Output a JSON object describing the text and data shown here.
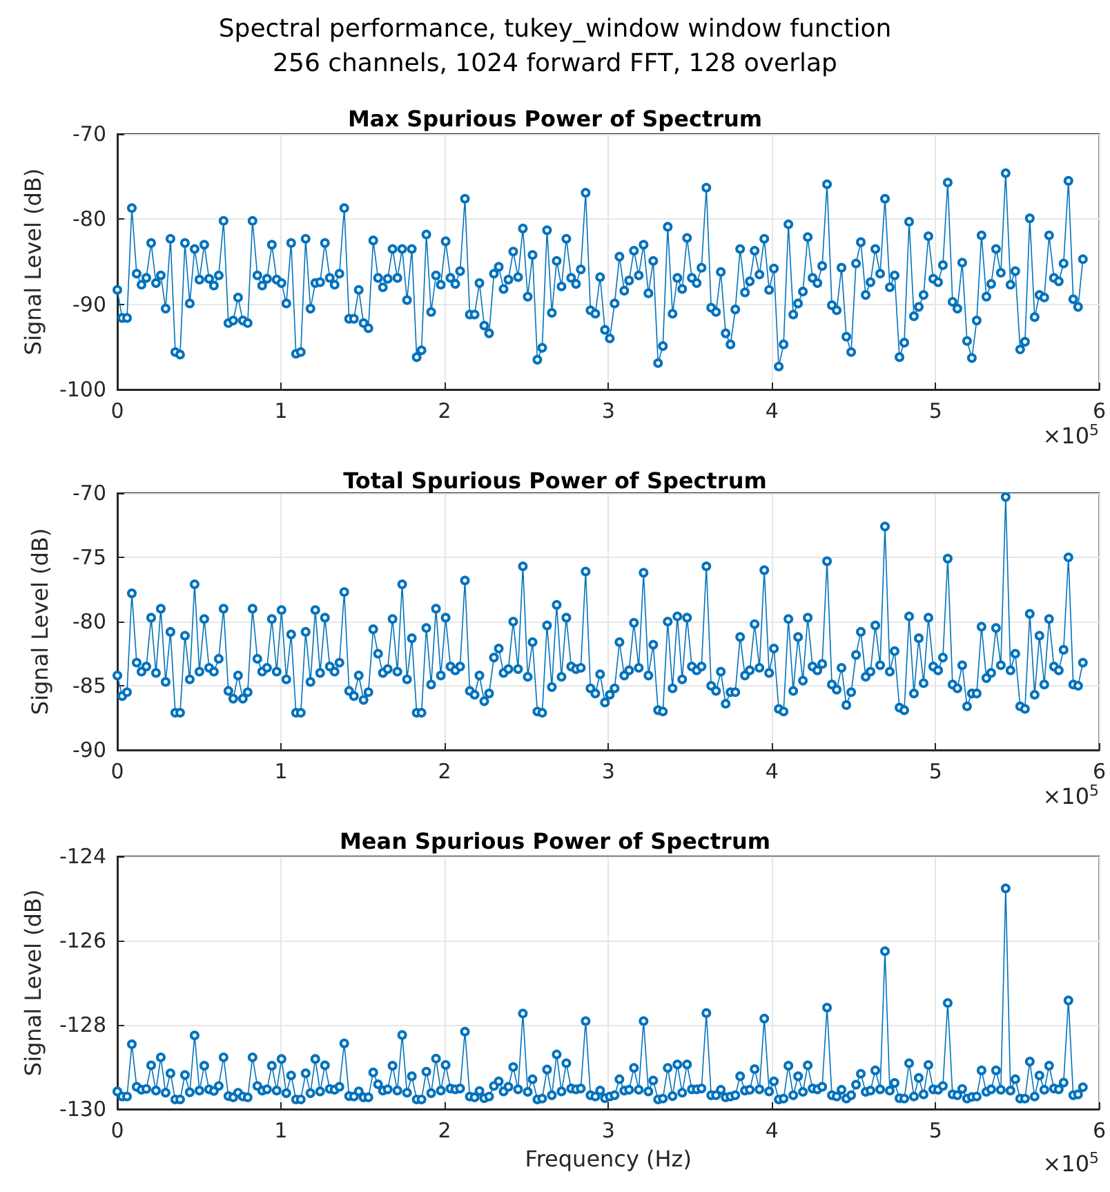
{
  "chart_data": [
    {
      "type": "line",
      "title": "Max Spurious Power of Spectrum",
      "ylabel": "Signal Level (dB)",
      "color": "#0072bd",
      "marker": "circle",
      "line_style": "solid",
      "grid": true,
      "annotations": [
        "Spectral performance, tukey_window window function",
        "256 channels, 1024 forward FFT, 128 overlap",
        "×10$^{5}$"
      ],
      "xlim": [
        0,
        6
      ],
      "xticks": [
        0,
        1,
        2,
        3,
        4,
        5,
        6
      ],
      "ylim": [
        -100,
        -70
      ],
      "yticks": [
        -100,
        -90,
        -80,
        -70
      ],
      "x": [
        0,
        0.0295,
        0.059,
        0.0885,
        0.118,
        0.1475,
        0.177,
        0.2065,
        0.236,
        0.2655,
        0.295,
        0.3245,
        0.354,
        0.3835,
        0.413,
        0.4425,
        0.472,
        0.5015,
        0.531,
        0.5605,
        0.59,
        0.6195,
        0.649,
        0.6785,
        0.708,
        0.7375,
        0.767,
        0.7965,
        0.826,
        0.8555,
        0.885,
        0.9145,
        0.944,
        0.9735,
        1.003,
        1.0325,
        1.062,
        1.0915,
        1.121,
        1.1505,
        1.18,
        1.2095,
        1.239,
        1.2685,
        1.298,
        1.3275,
        1.357,
        1.3865,
        1.416,
        1.4455,
        1.475,
        1.5045,
        1.534,
        1.5635,
        1.593,
        1.6225,
        1.652,
        1.6815,
        1.711,
        1.7405,
        1.77,
        1.7995,
        1.829,
        1.8585,
        1.888,
        1.9175,
        1.947,
        1.9765,
        2.006,
        2.0355,
        2.065,
        2.0945,
        2.124,
        2.1535,
        2.183,
        2.2125,
        2.242,
        2.2715,
        2.301,
        2.3305,
        2.36,
        2.3895,
        2.419,
        2.4485,
        2.478,
        2.5075,
        2.537,
        2.5665,
        2.596,
        2.6255,
        2.655,
        2.6845,
        2.714,
        2.7435,
        2.773,
        2.8025,
        2.832,
        2.8615,
        2.891,
        2.9205,
        2.95,
        2.9795,
        3.009,
        3.0385,
        3.068,
        3.0975,
        3.127,
        3.1565,
        3.186,
        3.2155,
        3.245,
        3.2745,
        3.304,
        3.3335,
        3.363,
        3.3925,
        3.422,
        3.4515,
        3.481,
        3.5105,
        3.54,
        3.5695,
        3.599,
        3.6285,
        3.658,
        3.6875,
        3.717,
        3.7465,
        3.776,
        3.8055,
        3.835,
        3.8645,
        3.894,
        3.9235,
        3.953,
        3.9825,
        4.012,
        4.0415,
        4.071,
        4.1005,
        4.13,
        4.1595,
        4.189,
        4.2185,
        4.248,
        4.2775,
        4.307,
        4.3365,
        4.366,
        4.3955,
        4.425,
        4.4545,
        4.484,
        4.5135,
        4.543,
        4.5725,
        4.602,
        4.6315,
        4.661,
        4.6905,
        4.72,
        4.7495,
        4.779,
        4.8085,
        4.838,
        4.8675,
        4.897,
        4.9265,
        4.956,
        4.9855,
        5.015,
        5.0445,
        5.074,
        5.1035,
        5.133,
        5.1625,
        5.192,
        5.2215,
        5.251,
        5.2805,
        5.31,
        5.3395,
        5.369,
        5.3985,
        5.428,
        5.4575,
        5.487,
        5.5165,
        5.546,
        5.5755,
        5.605,
        5.6345,
        5.664,
        5.6935,
        5.723,
        5.7525,
        5.782,
        5.8115,
        5.841,
        5.8705,
        5.9
      ],
      "values": [
        -88.3,
        -91.6,
        -91.6,
        -78.7,
        -86.4,
        -87.7,
        -86.9,
        -82.8,
        -87.5,
        -86.6,
        -90.5,
        -82.3,
        -95.6,
        -95.9,
        -82.8,
        -89.9,
        -83.5,
        -87.1,
        -83.0,
        -87.0,
        -87.8,
        -86.6,
        -80.2,
        -92.2,
        -91.9,
        -89.2,
        -91.9,
        -92.2,
        -80.2,
        -86.6,
        -87.8,
        -87.0,
        -83.0,
        -87.1,
        -87.5,
        -89.9,
        -82.8,
        -95.8,
        -95.6,
        -82.3,
        -90.5,
        -87.5,
        -87.4,
        -82.8,
        -86.9,
        -87.7,
        -86.4,
        -78.7,
        -91.7,
        -91.7,
        -88.3,
        -92.2,
        -92.8,
        -82.5,
        -86.9,
        -88.0,
        -87.0,
        -83.5,
        -86.9,
        -83.5,
        -89.5,
        -83.5,
        -96.2,
        -95.4,
        -81.8,
        -90.9,
        -86.6,
        -87.7,
        -82.6,
        -86.9,
        -87.6,
        -86.1,
        -77.6,
        -91.2,
        -91.2,
        -87.5,
        -92.5,
        -93.4,
        -86.4,
        -85.6,
        -88.2,
        -87.1,
        -83.8,
        -86.8,
        -81.1,
        -89.1,
        -84.2,
        -96.5,
        -95.1,
        -81.3,
        -91.0,
        -84.9,
        -87.9,
        -82.3,
        -86.9,
        -87.6,
        -85.9,
        -76.9,
        -90.7,
        -91.1,
        -86.8,
        -93.0,
        -94.0,
        -89.9,
        -84.4,
        -88.4,
        -87.2,
        -83.7,
        -86.6,
        -83.0,
        -88.7,
        -84.9,
        -96.9,
        -94.9,
        -80.9,
        -91.1,
        -86.9,
        -88.2,
        -82.2,
        -86.9,
        -87.5,
        -85.7,
        -76.3,
        -90.4,
        -90.9,
        -86.2,
        -93.4,
        -94.7,
        -90.6,
        -83.5,
        -88.6,
        -87.3,
        -83.7,
        -86.5,
        -82.3,
        -88.3,
        -85.8,
        -97.3,
        -94.7,
        -80.6,
        -91.2,
        -89.9,
        -88.5,
        -82.1,
        -86.9,
        -87.5,
        -85.5,
        -75.9,
        -90.1,
        -90.7,
        -85.7,
        -93.8,
        -95.6,
        -85.2,
        -82.7,
        -88.9,
        -87.4,
        -83.5,
        -86.4,
        -77.6,
        -88.0,
        -86.6,
        -96.2,
        -94.5,
        -80.3,
        -91.4,
        -90.3,
        -88.9,
        -82.0,
        -87.0,
        -87.4,
        -85.4,
        -75.7,
        -89.7,
        -90.5,
        -85.1,
        -94.3,
        -96.3,
        -91.9,
        -81.9,
        -89.1,
        -87.6,
        -83.5,
        -86.3,
        -74.6,
        -87.7,
        -86.1,
        -95.3,
        -94.4,
        -79.9,
        -91.5,
        -88.9,
        -89.2,
        -81.9,
        -86.9,
        -87.3,
        -85.2,
        -75.5,
        -89.4,
        -90.3,
        -84.7
      ]
    },
    {
      "type": "line",
      "title": "Total Spurious Power of Spectrum",
      "ylabel": "Signal Level (dB)",
      "color": "#0072bd",
      "marker": "circle",
      "line_style": "solid",
      "grid": true,
      "annotations": [
        "×10$^{5}$"
      ],
      "xlim": [
        0,
        6
      ],
      "xticks": [
        0,
        1,
        2,
        3,
        4,
        5,
        6
      ],
      "ylim": [
        -90,
        -70
      ],
      "yticks": [
        -90,
        -85,
        -80,
        -75,
        -70
      ],
      "x": [
        0,
        0.0295,
        0.059,
        0.0885,
        0.118,
        0.1475,
        0.177,
        0.2065,
        0.236,
        0.2655,
        0.295,
        0.3245,
        0.354,
        0.3835,
        0.413,
        0.4425,
        0.472,
        0.5015,
        0.531,
        0.5605,
        0.59,
        0.6195,
        0.649,
        0.6785,
        0.708,
        0.7375,
        0.767,
        0.7965,
        0.826,
        0.8555,
        0.885,
        0.9145,
        0.944,
        0.9735,
        1.003,
        1.0325,
        1.062,
        1.0915,
        1.121,
        1.1505,
        1.18,
        1.2095,
        1.239,
        1.2685,
        1.298,
        1.3275,
        1.357,
        1.3865,
        1.416,
        1.4455,
        1.475,
        1.5045,
        1.534,
        1.5635,
        1.593,
        1.6225,
        1.652,
        1.6815,
        1.711,
        1.7405,
        1.77,
        1.7995,
        1.829,
        1.8585,
        1.888,
        1.9175,
        1.947,
        1.9765,
        2.006,
        2.0355,
        2.065,
        2.0945,
        2.124,
        2.1535,
        2.183,
        2.2125,
        2.242,
        2.2715,
        2.301,
        2.3305,
        2.36,
        2.3895,
        2.419,
        2.4485,
        2.478,
        2.5075,
        2.537,
        2.5665,
        2.596,
        2.6255,
        2.655,
        2.6845,
        2.714,
        2.7435,
        2.773,
        2.8025,
        2.832,
        2.8615,
        2.891,
        2.9205,
        2.95,
        2.9795,
        3.009,
        3.0385,
        3.068,
        3.0975,
        3.127,
        3.1565,
        3.186,
        3.2155,
        3.245,
        3.2745,
        3.304,
        3.3335,
        3.363,
        3.3925,
        3.422,
        3.4515,
        3.481,
        3.5105,
        3.54,
        3.5695,
        3.599,
        3.6285,
        3.658,
        3.6875,
        3.717,
        3.7465,
        3.776,
        3.8055,
        3.835,
        3.8645,
        3.894,
        3.9235,
        3.953,
        3.9825,
        4.012,
        4.0415,
        4.071,
        4.1005,
        4.13,
        4.1595,
        4.189,
        4.2185,
        4.248,
        4.2775,
        4.307,
        4.3365,
        4.366,
        4.3955,
        4.425,
        4.4545,
        4.484,
        4.5135,
        4.543,
        4.5725,
        4.602,
        4.6315,
        4.661,
        4.6905,
        4.72,
        4.7495,
        4.779,
        4.8085,
        4.838,
        4.8675,
        4.897,
        4.9265,
        4.956,
        4.9855,
        5.015,
        5.0445,
        5.074,
        5.1035,
        5.133,
        5.1625,
        5.192,
        5.2215,
        5.251,
        5.2805,
        5.31,
        5.3395,
        5.369,
        5.3985,
        5.428,
        5.4575,
        5.487,
        5.5165,
        5.546,
        5.5755,
        5.605,
        5.6345,
        5.664,
        5.6935,
        5.723,
        5.7525,
        5.782,
        5.8115,
        5.841,
        5.8705,
        5.9
      ],
      "values": [
        -84.2,
        -85.8,
        -85.5,
        -77.8,
        -83.2,
        -83.9,
        -83.5,
        -79.7,
        -84.0,
        -79.0,
        -84.7,
        -80.8,
        -87.1,
        -87.1,
        -81.1,
        -84.5,
        -77.1,
        -83.9,
        -79.8,
        -83.6,
        -83.9,
        -82.9,
        -79.0,
        -85.4,
        -86.0,
        -84.2,
        -86.0,
        -85.5,
        -79.0,
        -82.9,
        -83.9,
        -83.6,
        -79.8,
        -83.9,
        -79.1,
        -84.5,
        -81.0,
        -87.1,
        -87.1,
        -80.8,
        -84.7,
        -79.1,
        -84.0,
        -79.7,
        -83.5,
        -83.9,
        -83.2,
        -77.7,
        -85.4,
        -85.8,
        -84.2,
        -86.1,
        -85.5,
        -80.6,
        -82.5,
        -84.0,
        -83.7,
        -79.8,
        -83.9,
        -77.1,
        -84.5,
        -81.3,
        -87.1,
        -87.1,
        -80.5,
        -84.9,
        -79.0,
        -84.2,
        -79.7,
        -83.5,
        -83.8,
        -83.5,
        -76.8,
        -85.4,
        -85.7,
        -84.2,
        -86.2,
        -85.6,
        -82.8,
        -82.1,
        -84.0,
        -83.7,
        -80.0,
        -83.7,
        -75.7,
        -84.3,
        -81.6,
        -87.0,
        -87.1,
        -80.3,
        -85.1,
        -78.7,
        -84.3,
        -79.7,
        -83.5,
        -83.7,
        -83.6,
        -76.1,
        -85.2,
        -85.6,
        -84.1,
        -86.3,
        -85.7,
        -85.2,
        -81.6,
        -84.2,
        -83.8,
        -80.1,
        -83.6,
        -76.2,
        -84.2,
        -81.8,
        -86.9,
        -87.0,
        -80.0,
        -85.2,
        -79.6,
        -84.5,
        -79.7,
        -83.5,
        -83.8,
        -83.5,
        -75.7,
        -85.0,
        -85.4,
        -83.9,
        -86.4,
        -85.5,
        -85.5,
        -81.2,
        -84.2,
        -83.8,
        -80.2,
        -83.6,
        -76.0,
        -84.0,
        -82.1,
        -86.8,
        -87.0,
        -79.8,
        -85.4,
        -81.2,
        -84.6,
        -79.7,
        -83.5,
        -83.8,
        -83.3,
        -75.3,
        -84.9,
        -85.3,
        -83.6,
        -86.5,
        -85.5,
        -82.6,
        -80.8,
        -84.3,
        -83.9,
        -80.3,
        -83.4,
        -72.6,
        -83.9,
        -82.3,
        -86.7,
        -86.9,
        -79.6,
        -85.6,
        -81.3,
        -84.8,
        -79.7,
        -83.5,
        -83.8,
        -82.8,
        -75.1,
        -84.9,
        -85.2,
        -83.4,
        -86.6,
        -85.6,
        -85.6,
        -80.4,
        -84.4,
        -84.0,
        -80.5,
        -83.4,
        -70.3,
        -83.8,
        -82.5,
        -86.6,
        -86.8,
        -79.4,
        -85.7,
        -81.1,
        -84.9,
        -79.8,
        -83.5,
        -83.8,
        -82.2,
        -75.0,
        -84.9,
        -85.0,
        -83.2
      ]
    },
    {
      "type": "line",
      "title": "Mean Spurious Power of Spectrum",
      "xlabel": "Frequency (Hz)",
      "ylabel": "Signal Level (dB)",
      "color": "#0072bd",
      "marker": "circle",
      "line_style": "solid",
      "grid": true,
      "annotations": [
        "×10$^{5}$"
      ],
      "xlim": [
        0,
        6
      ],
      "xticks": [
        0,
        1,
        2,
        3,
        4,
        5,
        6
      ],
      "ylim": [
        -130,
        -124
      ],
      "yticks": [
        -130,
        -128,
        -126,
        -124
      ],
      "x": [
        0,
        0.0295,
        0.059,
        0.0885,
        0.118,
        0.1475,
        0.177,
        0.2065,
        0.236,
        0.2655,
        0.295,
        0.3245,
        0.354,
        0.3835,
        0.413,
        0.4425,
        0.472,
        0.5015,
        0.531,
        0.5605,
        0.59,
        0.6195,
        0.649,
        0.6785,
        0.708,
        0.7375,
        0.767,
        0.7965,
        0.826,
        0.8555,
        0.885,
        0.9145,
        0.944,
        0.9735,
        1.003,
        1.0325,
        1.062,
        1.0915,
        1.121,
        1.1505,
        1.18,
        1.2095,
        1.239,
        1.2685,
        1.298,
        1.3275,
        1.357,
        1.3865,
        1.416,
        1.4455,
        1.475,
        1.5045,
        1.534,
        1.5635,
        1.593,
        1.6225,
        1.652,
        1.6815,
        1.711,
        1.7405,
        1.77,
        1.7995,
        1.829,
        1.8585,
        1.888,
        1.9175,
        1.947,
        1.9765,
        2.006,
        2.0355,
        2.065,
        2.0945,
        2.124,
        2.1535,
        2.183,
        2.2125,
        2.242,
        2.2715,
        2.301,
        2.3305,
        2.36,
        2.3895,
        2.419,
        2.4485,
        2.478,
        2.5075,
        2.537,
        2.5665,
        2.596,
        2.6255,
        2.655,
        2.6845,
        2.714,
        2.7435,
        2.773,
        2.8025,
        2.832,
        2.8615,
        2.891,
        2.9205,
        2.95,
        2.9795,
        3.009,
        3.0385,
        3.068,
        3.0975,
        3.127,
        3.1565,
        3.186,
        3.2155,
        3.245,
        3.2745,
        3.304,
        3.3335,
        3.363,
        3.3925,
        3.422,
        3.4515,
        3.481,
        3.5105,
        3.54,
        3.5695,
        3.599,
        3.6285,
        3.658,
        3.6875,
        3.717,
        3.7465,
        3.776,
        3.8055,
        3.835,
        3.8645,
        3.894,
        3.9235,
        3.953,
        3.9825,
        4.012,
        4.0415,
        4.071,
        4.1005,
        4.13,
        4.1595,
        4.189,
        4.2185,
        4.248,
        4.2775,
        4.307,
        4.3365,
        4.366,
        4.3955,
        4.425,
        4.4545,
        4.484,
        4.5135,
        4.543,
        4.5725,
        4.602,
        4.6315,
        4.661,
        4.6905,
        4.72,
        4.7495,
        4.779,
        4.8085,
        4.838,
        4.8675,
        4.897,
        4.9265,
        4.956,
        4.9855,
        5.015,
        5.0445,
        5.074,
        5.1035,
        5.133,
        5.1625,
        5.192,
        5.2215,
        5.251,
        5.2805,
        5.31,
        5.3395,
        5.369,
        5.3985,
        5.428,
        5.4575,
        5.487,
        5.5165,
        5.546,
        5.5755,
        5.605,
        5.6345,
        5.664,
        5.6935,
        5.723,
        5.7525,
        5.782,
        5.8115,
        5.841,
        5.8705,
        5.9
      ],
      "values": [
        -129.58,
        -129.7,
        -129.7,
        -128.46,
        -129.47,
        -129.54,
        -129.52,
        -128.96,
        -129.56,
        -128.77,
        -129.61,
        -129.15,
        -129.77,
        -129.77,
        -129.19,
        -129.6,
        -128.25,
        -129.56,
        -128.97,
        -129.53,
        -129.57,
        -129.45,
        -128.77,
        -129.69,
        -129.72,
        -129.61,
        -129.7,
        -129.72,
        -128.77,
        -129.45,
        -129.56,
        -129.53,
        -128.97,
        -129.56,
        -128.81,
        -129.62,
        -129.2,
        -129.77,
        -129.77,
        -129.15,
        -129.62,
        -128.81,
        -129.58,
        -128.96,
        -129.52,
        -129.54,
        -129.47,
        -128.44,
        -129.69,
        -129.7,
        -129.58,
        -129.72,
        -129.72,
        -129.13,
        -129.41,
        -129.56,
        -129.53,
        -128.97,
        -129.56,
        -128.24,
        -129.61,
        -129.22,
        -129.77,
        -129.77,
        -129.11,
        -129.62,
        -128.8,
        -129.56,
        -128.95,
        -129.51,
        -129.53,
        -129.51,
        -128.16,
        -129.7,
        -129.72,
        -129.57,
        -129.74,
        -129.7,
        -129.45,
        -129.34,
        -129.58,
        -129.47,
        -129.0,
        -129.53,
        -127.73,
        -129.59,
        -129.29,
        -129.77,
        -129.75,
        -129.06,
        -129.67,
        -128.7,
        -129.58,
        -128.91,
        -129.51,
        -129.53,
        -129.51,
        -127.91,
        -129.67,
        -129.7,
        -129.56,
        -129.74,
        -129.7,
        -129.67,
        -129.29,
        -129.56,
        -129.54,
        -129.02,
        -129.54,
        -127.91,
        -129.58,
        -129.32,
        -129.77,
        -129.75,
        -129.02,
        -129.69,
        -128.94,
        -129.61,
        -128.94,
        -129.53,
        -129.53,
        -129.51,
        -127.72,
        -129.67,
        -129.67,
        -129.54,
        -129.72,
        -129.7,
        -129.67,
        -129.22,
        -129.56,
        -129.54,
        -129.05,
        -129.53,
        -127.85,
        -129.58,
        -129.34,
        -129.77,
        -129.75,
        -128.97,
        -129.67,
        -129.22,
        -129.59,
        -128.96,
        -129.51,
        -129.53,
        -129.47,
        -127.59,
        -129.67,
        -129.7,
        -129.54,
        -129.75,
        -129.67,
        -129.42,
        -129.16,
        -129.59,
        -129.56,
        -129.08,
        -129.53,
        -126.25,
        -129.56,
        -129.38,
        -129.74,
        -129.75,
        -128.91,
        -129.7,
        -129.26,
        -129.65,
        -128.95,
        -129.53,
        -129.54,
        -129.45,
        -127.48,
        -129.65,
        -129.67,
        -129.52,
        -129.75,
        -129.71,
        -129.7,
        -129.08,
        -129.59,
        -129.53,
        -129.08,
        -129.54,
        -124.76,
        -129.56,
        -129.29,
        -129.75,
        -129.75,
        -128.87,
        -129.7,
        -129.2,
        -129.54,
        -128.97,
        -129.51,
        -129.53,
        -129.37,
        -127.42,
        -129.67,
        -129.65,
        -129.48
      ]
    }
  ]
}
